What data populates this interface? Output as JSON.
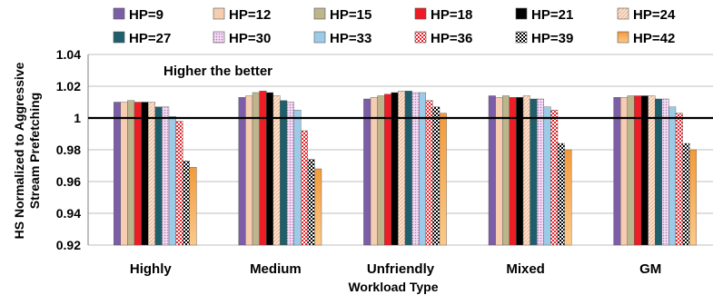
{
  "chart_data": {
    "type": "bar",
    "title": "",
    "annotation": "Higher the better",
    "xlabel": "Workload Type",
    "ylabel_lines": [
      "HS Normalized to Aggressive",
      "Stream Prefetching"
    ],
    "ylim": [
      0.92,
      1.04
    ],
    "yticks": [
      "0.92",
      "0.94",
      "0.96",
      "0.98",
      "1",
      "1.02",
      "1.04"
    ],
    "reference_line": 1,
    "grid": true,
    "legend_position": "top",
    "categories": [
      "Highly",
      "Medium",
      "Unfriendly",
      "Mixed",
      "GM"
    ],
    "series": [
      {
        "name": "HP=9",
        "color": "#7b5ea7",
        "pattern": "solid",
        "values": [
          1.01,
          1.013,
          1.012,
          1.014,
          1.013
        ]
      },
      {
        "name": "HP=12",
        "color": "#f6cdb1",
        "pattern": "solid",
        "values": [
          1.01,
          1.014,
          1.013,
          1.013,
          1.013
        ]
      },
      {
        "name": "HP=15",
        "color": "#bdb58c",
        "pattern": "solid",
        "values": [
          1.011,
          1.016,
          1.014,
          1.014,
          1.014
        ]
      },
      {
        "name": "HP=18",
        "color": "#ee1c25",
        "pattern": "solid",
        "values": [
          1.01,
          1.017,
          1.015,
          1.013,
          1.014
        ]
      },
      {
        "name": "HP=21",
        "color": "#000000",
        "pattern": "solid",
        "values": [
          1.01,
          1.016,
          1.016,
          1.013,
          1.014
        ]
      },
      {
        "name": "HP=24",
        "color": "#f8c8a8",
        "pattern": "hatch",
        "values": [
          1.01,
          1.014,
          1.017,
          1.014,
          1.014
        ]
      },
      {
        "name": "HP=27",
        "color": "#1f5f6b",
        "pattern": "solid",
        "values": [
          1.007,
          1.011,
          1.017,
          1.012,
          1.012
        ]
      },
      {
        "name": "HP=30",
        "color": "#e6b8e6",
        "pattern": "dots",
        "values": [
          1.007,
          1.01,
          1.016,
          1.012,
          1.012
        ]
      },
      {
        "name": "HP=33",
        "color": "#9ccbe8",
        "pattern": "solid",
        "values": [
          1.001,
          1.005,
          1.016,
          1.007,
          1.007
        ]
      },
      {
        "name": "HP=36",
        "color": "#e8232a",
        "pattern": "check",
        "values": [
          0.998,
          0.992,
          1.011,
          1.005,
          1.003
        ]
      },
      {
        "name": "HP=39",
        "color": "#000000",
        "pattern": "grid",
        "values": [
          0.973,
          0.974,
          1.007,
          0.984,
          0.984
        ]
      },
      {
        "name": "HP=42",
        "color": "#f7a24a",
        "pattern": "gradient",
        "values": [
          0.969,
          0.968,
          1.003,
          0.98,
          0.98
        ]
      }
    ]
  }
}
